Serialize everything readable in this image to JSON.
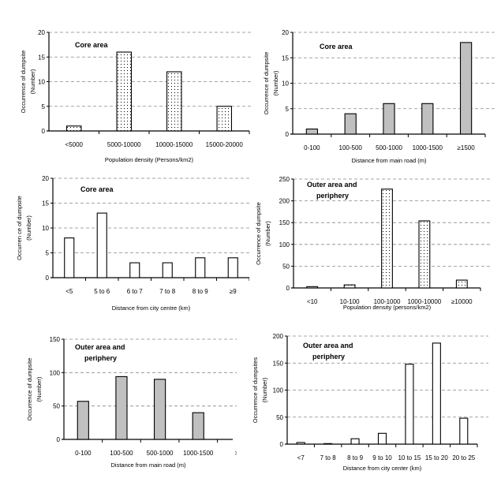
{
  "chart_data": [
    {
      "type": "bar",
      "id": "core-density",
      "title": "Core area",
      "xlabel": "Population density  (Persons/km2)",
      "ylabel": [
        "Occurrence of dumpsite",
        "(Number)"
      ],
      "categories": [
        "<5000",
        "5000-10000",
        "10000-15000",
        "15000-20000"
      ],
      "values": [
        1,
        16,
        12,
        5
      ],
      "ylim": [
        0,
        20
      ],
      "yticks": [
        0,
        5,
        10,
        15,
        20
      ],
      "grid": true,
      "fill": "dotted"
    },
    {
      "type": "bar",
      "id": "core-road",
      "title": "Core area",
      "xlabel": "Distance from main road (m)",
      "ylabel": [
        "Occurrence of dumpsite",
        "(Number)"
      ],
      "categories": [
        "0-100",
        "100-500",
        "500-1000",
        "1000-1500",
        "≥1500"
      ],
      "values": [
        1,
        4,
        6,
        6,
        18
      ],
      "ylim": [
        0,
        20
      ],
      "yticks": [
        0,
        5,
        10,
        15,
        20
      ],
      "grid": true,
      "fill": "gray"
    },
    {
      "type": "bar",
      "id": "core-centre",
      "title": "Core area",
      "xlabel": "Distance from city  centre (km)",
      "ylabel": [
        "Occurren ce of dumpsite",
        "(Number)"
      ],
      "categories": [
        "<5",
        "5 to 6",
        "6 to 7",
        "7 to 8",
        "8 to 9",
        "≥9"
      ],
      "values": [
        8,
        13,
        3,
        3,
        4,
        4
      ],
      "ylim": [
        0,
        20
      ],
      "yticks": [
        0,
        5,
        10,
        15,
        20
      ],
      "grid": true,
      "fill": "white"
    },
    {
      "type": "bar",
      "id": "outer-density",
      "title": "Outer area and periphery",
      "xlabel": "Population density  (persons/km2)",
      "ylabel": [
        "Occurrence of dumpsite",
        "(Number)"
      ],
      "categories": [
        "<10",
        "10-100",
        "100-1000",
        "1000-10000",
        "≥10000"
      ],
      "values": [
        3,
        7,
        227,
        154,
        18
      ],
      "ylim": [
        0,
        250
      ],
      "yticks": [
        0,
        50,
        100,
        150,
        200,
        250
      ],
      "grid": true,
      "fill": "dotted"
    },
    {
      "type": "bar",
      "id": "outer-road",
      "title": "Outer area and periphery",
      "xlabel": "Distance from main road (m)",
      "ylabel": [
        "Occurrence of dumpsite",
        "(Number)"
      ],
      "categories": [
        "0-100",
        "100-500",
        "500-1000",
        "1000-1500",
        ">"
      ],
      "values": [
        57,
        94,
        90,
        40,
        null
      ],
      "ylim": [
        0,
        150
      ],
      "yticks": [
        0,
        50,
        100,
        150
      ],
      "grid": true,
      "fill": "gray"
    },
    {
      "type": "bar",
      "id": "outer-centre",
      "title": "Outer area and periphery",
      "xlabel": "Distance from city center (km)",
      "ylabel": [
        "Occurrence of dumpsites",
        "(Number)"
      ],
      "categories": [
        "<7",
        "7 to 8",
        "8 to 9",
        "9 to 10",
        "10 to 15",
        "15 to 20",
        "20 to 25"
      ],
      "values": [
        3,
        1,
        10,
        20,
        148,
        187,
        48
      ],
      "ylim": [
        0,
        200
      ],
      "yticks": [
        0,
        50,
        100,
        150,
        200
      ],
      "grid": true,
      "fill": "white"
    }
  ],
  "colors": {
    "gray_bar": "#c0c0c0",
    "white_bar": "#ffffff",
    "grid": "#888888",
    "axis": "#000000"
  }
}
